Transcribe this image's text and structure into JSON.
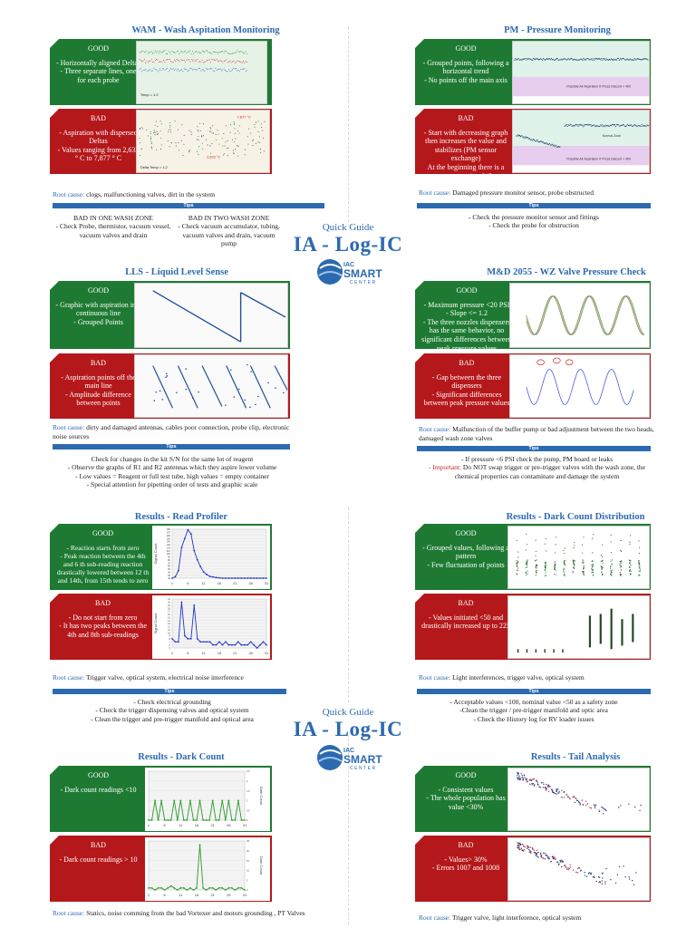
{
  "colors": {
    "good": "#1e7a32",
    "bad": "#b5181b",
    "accent": "#2c6ab0"
  },
  "guide": {
    "subtitle": "Quick Guide",
    "title": "IA - Log-IC",
    "logo_top": "IAC",
    "logo_main": "SMART",
    "logo_sub": "CENTER"
  },
  "tips_label": "Tips",
  "wam": {
    "title": "WAM - Wash Aspitation Monitoring",
    "good_label": "GOOD",
    "good_text": "- Horizontally aligned Deltas\n- Three separate lines, one for each probe",
    "bad_label": "BAD",
    "bad_text": "- Aspiration with dispersed Deltas\n- Values ranging from 2,633 ° C to 7,877 ° C",
    "root_label": "Root cause:",
    "root_text": "clogs, malfunctioning valves, dirt in the system",
    "tip1_title": "BAD IN ONE WASH ZONE",
    "tip1_text": "- Check Probe, thermistor, vacuum vessel, vacuum valves and drain",
    "tip2_title": "BAD IN TWO WASH ZONE",
    "tip2_text": "- Check vacuum accumulator, tubing, vacuum valves and drain, vacuum pump",
    "plot_good_label": "Temp = 1.2",
    "plot_bad_label1": "Delta Temp = 1.2",
    "plot_bad_label2": "7,877 °C",
    "plot_bad_label3": "2,633 °C"
  },
  "pm": {
    "title": "PM - Pressure Monitoring",
    "good_label": "GOOD",
    "good_text": "- Grouped points, following a horizontal trend\n- No points off the main axis",
    "bad_label": "BAD",
    "bad_text": "- Start with decreasing graph then increases the value and stabilizes (PM sensor exchange)\nAt the beginning there is a pressure monitor failure",
    "root_label": "Root cause:",
    "root_text": "Damaged pressure monitor sensor, probe obstructed",
    "tips": "- Check the pressure monitor sensor and fittings\n- Check the probe for obstruction",
    "plot_label": "Possible Air Aspiration If Press Discont < 400",
    "plot_normal": "Normal Zone"
  },
  "lls": {
    "title": "LLS - Liquid Level Sense",
    "good_label": "GOOD",
    "good_text": "- Graphic with aspiration in a continuous line\n- Grouped Points",
    "bad_label": "BAD",
    "bad_text": "- Aspiration points off the main line\n- Amplitude difference between points",
    "root_label": "Root cause:",
    "root_text": "dirty and damaged antennas, cables poor connection, probe clip, electronic noise sources",
    "tips": "Check for changes in the kit S/N for the same lot of reagent\n- Observe the graphs of R1 and R2 antennas which they aspire lower volume\n- Low values = Reagent or full test tube, high values = empty container\n- Special attention for pipetting order of tests and graphic scale"
  },
  "md": {
    "title": "M&D 2055 - WZ Valve Pressure Check",
    "good_label": "GOOD",
    "good_text": "- Maximum pressure <20 PSI\n- Slope <= 1.2\n- The three nozzles dispensers has the same behavior, no significant differences between peak pressure values",
    "bad_label": "BAD",
    "bad_text": "- Gap between the three dispensers\n- Significant differences between peak pressure values",
    "root_label": "Root cause:",
    "root_text": "Malfunction of the buffer pump or bad adjustment between the two heads, damaged wash zone valves",
    "tips1": "- If pressure <6 PSI check the pump, PM board or leaks",
    "tips_imp": "- Important:",
    "tips2": "Do NOT swap trigger or pre-trigger valves with the wash zone, the chemical properties can contaminate and damage the system"
  },
  "rp": {
    "title": "Results - Read Profiler",
    "good_label": "GOOD",
    "good_text": "- Reaction starts from zero\n- Peak reaction between the 4th and 6 th sub-reading reaction drastically lowered between 12 th and 14th, from 15th tends to zero",
    "bad_label": "BAD",
    "bad_text": "- Do not start from zero\n- It has two peaks between the 4th and 8th sub-readings",
    "root_label": "Root cause:",
    "root_text": "Trigger valve, optical system, electrical noise interference",
    "tips": "- Check electrical grounding\n- Check the trigger dispensing valves and optical system\n- Clean the trigger and pre-trigger manifold and optical area",
    "ylabel": "Signal Count",
    "x_ticks": [
      "1",
      "6",
      "11",
      "16",
      "21",
      "26",
      "31"
    ],
    "good_y_ticks": [
      "180",
      "170",
      "160",
      "150",
      "140",
      "130",
      "120",
      "110",
      "100",
      "90",
      "80",
      "70",
      "60",
      "50",
      "40",
      "30",
      "20"
    ],
    "bad_y_ticks": [
      "21",
      "20",
      "19",
      "18",
      "17",
      "16",
      "15",
      "14",
      "13",
      "12",
      "11",
      "10",
      "9",
      "8",
      "7",
      "6",
      "5"
    ]
  },
  "dcd": {
    "title": "Results - Dark Count Distribution",
    "good_label": "GOOD",
    "good_text": "- Grouped values, following a pattern\n- Few fluctuation of points",
    "bad_label": "BAD",
    "bad_text": "- Values initiated <50 and drastically increased up to 225",
    "root_label": "Root cause:",
    "root_text": "Light interferences, trigger valve, optical system",
    "tips": "- Acceptable values <100, nominal value <50 as a safety zone\n-Clean the trigger / pre-trigger manifold and optic area\n- Check the History log for RV loader issues"
  },
  "dc": {
    "title": "Results - Dark Count",
    "good_label": "GOOD",
    "good_text": "- Dark count readings <10",
    "bad_label": "BAD",
    "bad_text": "- Dark count readings > 10",
    "root_label": "Root cause:",
    "root_text": "Statics, noise comming from the bad Vortexer and motors grounding , PT Valves",
    "ylabel": "Dark Count",
    "x_ticks": [
      "1",
      "6",
      "11",
      "16",
      "21",
      "26",
      "31"
    ],
    "good_y_ticks": [
      "2.5",
      "2",
      "1.5",
      "1",
      "0.5",
      "0"
    ],
    "bad_y_ticks": [
      "25",
      "20",
      "15",
      "10",
      "5",
      "0"
    ]
  },
  "ta": {
    "title": "Results - Tail Analysis",
    "good_label": "GOOD",
    "good_text": "- Consistent values\n- The whole population has value <30%",
    "bad_label": "BAD",
    "bad_text": "- Values> 30%\n- Errors 1007 and 1008",
    "root_label": "Root cause:",
    "root_text": "Trigger valve, light interference, optical system"
  },
  "chart_data": [
    {
      "type": "line",
      "title": "Results - Read Profiler (GOOD)",
      "ylabel": "Signal Count",
      "x": [
        1,
        2,
        3,
        4,
        5,
        6,
        7,
        8,
        9,
        10,
        11,
        12,
        13,
        14,
        15,
        16,
        17,
        18,
        19,
        20,
        21,
        22,
        23,
        24,
        25,
        26,
        27,
        28,
        29,
        30,
        31
      ],
      "values": [
        20,
        25,
        45,
        120,
        150,
        178,
        165,
        110,
        80,
        58,
        40,
        32,
        26,
        24,
        22,
        21,
        20,
        20,
        20,
        20,
        20,
        20,
        20,
        20,
        20,
        20,
        20,
        20,
        20,
        20,
        20
      ],
      "ylim": [
        20,
        180
      ]
    },
    {
      "type": "line",
      "title": "Results - Read Profiler (BAD)",
      "ylabel": "Signal Count",
      "x": [
        1,
        2,
        3,
        4,
        5,
        6,
        7,
        8,
        9,
        10,
        11,
        12,
        13,
        14,
        15,
        16,
        17,
        18,
        19,
        20,
        21,
        22,
        23,
        24,
        25,
        26,
        27,
        28,
        29,
        30,
        31
      ],
      "values": [
        8,
        7,
        7,
        20,
        9,
        8,
        8,
        19,
        8,
        7,
        7,
        7,
        7,
        6,
        6,
        7,
        6,
        7,
        6,
        6,
        6,
        7,
        6,
        6,
        6,
        7,
        6,
        5,
        6,
        7,
        6
      ],
      "ylim": [
        5,
        21
      ]
    },
    {
      "type": "line",
      "title": "Results - Dark Count (GOOD)",
      "ylabel": "Dark Count",
      "x": [
        1,
        2,
        3,
        4,
        5,
        6,
        7,
        8,
        9,
        10,
        11,
        12,
        13,
        14,
        15,
        16,
        17,
        18,
        19,
        20,
        21,
        22,
        23,
        24,
        25,
        26,
        27,
        28,
        29,
        30,
        31
      ],
      "values": [
        0,
        0,
        1,
        0,
        1,
        0,
        0,
        0,
        1,
        0,
        1,
        0,
        0,
        1,
        0,
        0,
        1,
        0,
        0,
        0,
        1,
        0,
        0,
        1,
        0,
        1,
        0,
        0,
        1,
        0,
        0
      ],
      "ylim": [
        0,
        2.5
      ]
    },
    {
      "type": "line",
      "title": "Results - Dark Count (BAD)",
      "ylabel": "Dark Count",
      "x": [
        1,
        2,
        3,
        4,
        5,
        6,
        7,
        8,
        9,
        10,
        11,
        12,
        13,
        14,
        15,
        16,
        17,
        18,
        19,
        20,
        21,
        22,
        23,
        24,
        25,
        26,
        27,
        28,
        29,
        30,
        31
      ],
      "values": [
        1,
        1,
        0,
        1,
        1,
        0,
        1,
        2,
        1,
        0,
        1,
        1,
        0,
        1,
        0,
        1,
        23,
        1,
        0,
        1,
        1,
        0,
        1,
        1,
        0,
        1,
        1,
        0,
        1,
        1,
        0
      ],
      "ylim": [
        0,
        25
      ]
    }
  ]
}
